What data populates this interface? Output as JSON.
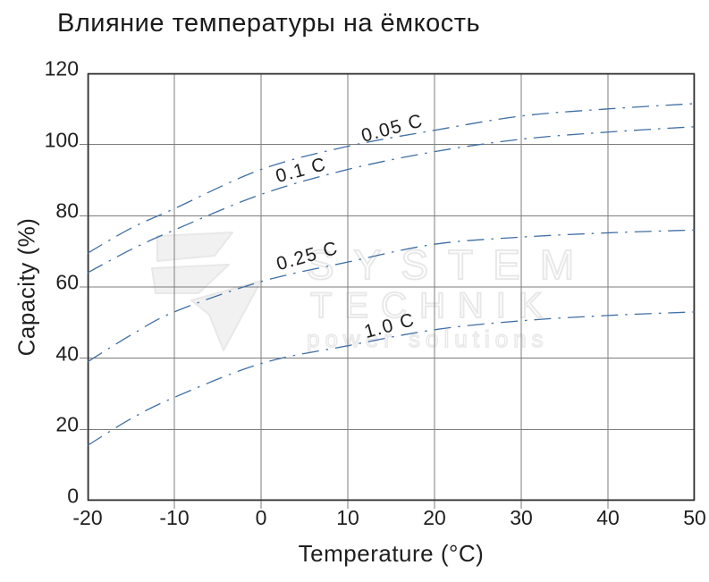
{
  "watermark": {
    "line1": "SYSTEM",
    "line2": "TECHNIK",
    "tagline": "power solutions"
  },
  "colors": {
    "curve": "#3f6fa3",
    "grid": "#7d7d7d",
    "border": "#2e2e2e",
    "text": "#1f1f1f",
    "watermark": "#e8e8e8",
    "logo_fill": "#f1f1f1"
  },
  "chart_data": {
    "type": "line",
    "title": "Влияние температуры на ёмкость",
    "xlabel": "Temperature (°C)",
    "ylabel": "Capacity (%)",
    "xlim": [
      -20,
      50
    ],
    "ylim": [
      0,
      120
    ],
    "x_ticks": [
      -20,
      -10,
      0,
      10,
      20,
      30,
      40,
      50
    ],
    "y_ticks": [
      0,
      20,
      40,
      60,
      80,
      100,
      120
    ],
    "grid": true,
    "legend_position": "inline-curve-labels",
    "line_style": "dash-dot",
    "x": [
      -20,
      -15,
      -10,
      0,
      10,
      20,
      30,
      40,
      50
    ],
    "series": [
      {
        "name": "0.05 C",
        "values": [
          69.5,
          76.5,
          82,
          93,
          99.5,
          104,
          108,
          110,
          111.5
        ],
        "label_anchor": {
          "x": 15.2,
          "y": 104.5,
          "rotation_deg": -15
        }
      },
      {
        "name": "0.1 C",
        "values": [
          64,
          70.5,
          76,
          86,
          93,
          98,
          101.5,
          103.5,
          105
        ],
        "label_anchor": {
          "x": 4.6,
          "y": 92.6,
          "rotation_deg": -15
        }
      },
      {
        "name": "0.25 C",
        "values": [
          39,
          46.5,
          53,
          61.5,
          67,
          72,
          74,
          75.2,
          76
        ],
        "label_anchor": {
          "x": 5.4,
          "y": 68.5,
          "rotation_deg": -16
        }
      },
      {
        "name": "1.0 C",
        "values": [
          15.5,
          23,
          29,
          38.5,
          43.5,
          48,
          50.5,
          52,
          53
        ],
        "label_anchor": {
          "x": 14.8,
          "y": 49,
          "rotation_deg": -15
        }
      }
    ]
  }
}
